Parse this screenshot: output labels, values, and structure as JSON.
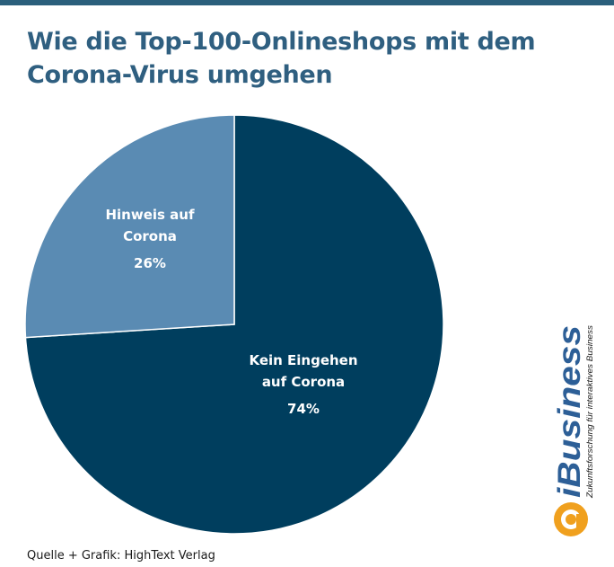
{
  "title": "Wie die Top-100-Onlineshops mit dem Corona-Virus umgehen",
  "source": "Quelle + Grafik: HighText Verlag",
  "brand": {
    "name": "iBusiness",
    "tagline": "Zukunftsforschung für interaktives Business"
  },
  "colors": {
    "title": "#2f5f80",
    "top_bar": "#2b5f7c",
    "slice_dark": "#003e5e",
    "slice_light": "#5a8bb3",
    "logo_blue": "#2d5f97",
    "logo_orange": "#f0a01e"
  },
  "chart_data": {
    "type": "pie",
    "title": "Wie die Top-100-Onlineshops mit dem Corona-Virus umgehen",
    "slices": [
      {
        "label": "Kein Eingehen auf Corona",
        "label_lines": [
          "Kein Eingehen",
          "auf Corona"
        ],
        "value": 74,
        "display": "74%",
        "color": "#003e5e"
      },
      {
        "label": "Hinweis auf Corona",
        "label_lines": [
          "Hinweis auf",
          "Corona"
        ],
        "value": 26,
        "display": "26%",
        "color": "#5a8bb3"
      }
    ],
    "legend": "none",
    "start_angle_deg": 0
  }
}
